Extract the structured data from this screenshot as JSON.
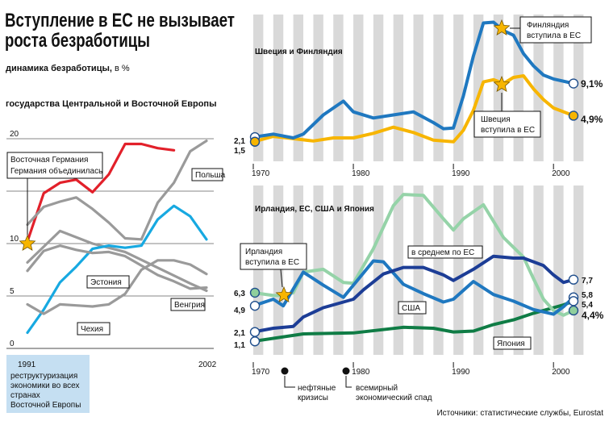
{
  "header": {
    "title_line1": "Вступление в ЕС не вызывает",
    "title_line2": "роста безработицы",
    "subtitle_bold": "динамика безработицы,",
    "subtitle_unit": " в %",
    "section_label": "государства Центральной и Восточной Европы"
  },
  "footer": {
    "restructuring_year": "1991",
    "restructuring_lines": [
      "реструктуризация",
      "экономики во всех",
      "странах",
      "Восточной Европы"
    ],
    "oil_crisis_lines": [
      "нефтяные",
      "кризисы"
    ],
    "recession_lines": [
      "всемирный",
      "экономический спад"
    ],
    "source": "Источники: статистические службы, Eurostat"
  },
  "colors": {
    "red": "#e2202a",
    "gray": "#9a9a9a",
    "cyan": "#17a9e1",
    "blue": "#1f78c0",
    "navy": "#1c3d96",
    "yellow": "#f7b500",
    "green": "#0f7c45",
    "lightgreen": "#95d3a8",
    "band": "#d9d9d9",
    "star": "#f7b500"
  },
  "chart_data": [
    {
      "type": "line",
      "title": "государства Центральной и Восточной Европы",
      "x_range": [
        1991,
        2002
      ],
      "ylim": [
        0,
        20
      ],
      "y_ticks": [
        "0",
        "5",
        "10",
        "20"
      ],
      "x_ticks": [
        "1991",
        "2002"
      ],
      "series": [
        {
          "name": "Восточная Германия",
          "color": "red",
          "x": [
            1991,
            1992,
            1993,
            1994,
            1995,
            1996,
            1997,
            1998,
            1999,
            2000,
            2001
          ],
          "values": [
            10.2,
            14.8,
            15.8,
            16.1,
            14.9,
            16.6,
            19.5,
            19.5,
            19.1,
            18.9,
            null
          ]
        },
        {
          "name": "Польша",
          "color": "gray",
          "x": [
            1991,
            1992,
            1993,
            1994,
            1995,
            1996,
            1997,
            1998,
            1999,
            2000,
            2001,
            2002
          ],
          "values": [
            11.8,
            13.5,
            14.0,
            14.4,
            13.3,
            12.0,
            10.5,
            10.4,
            13.9,
            15.8,
            18.8,
            19.8
          ]
        },
        {
          "name": "",
          "color": "gray",
          "x": [
            1991,
            1993,
            1995,
            1997,
            1999,
            2001,
            2002
          ],
          "values": [
            8.2,
            11.2,
            10.0,
            9.2,
            7.7,
            6.2,
            5.5
          ]
        },
        {
          "name": "Эстония",
          "color": "cyan",
          "x": [
            1991,
            1992,
            1993,
            1994,
            1995,
            1996,
            1997,
            1998,
            1999,
            2000,
            2001,
            2002
          ],
          "values": [
            1.5,
            3.7,
            6.3,
            7.8,
            9.5,
            9.8,
            9.6,
            9.8,
            12.3,
            13.6,
            12.6,
            10.4
          ]
        },
        {
          "name": "Венгрия",
          "color": "gray",
          "x": [
            1991,
            1992,
            1993,
            1994,
            1995,
            1996,
            1997,
            1998,
            1999,
            2000,
            2001,
            2002
          ],
          "values": [
            7.4,
            9.3,
            9.8,
            9.4,
            9.1,
            9.2,
            8.8,
            7.9,
            7.0,
            6.4,
            5.7,
            5.8
          ]
        },
        {
          "name": "Чехия",
          "color": "gray",
          "x": [
            1991,
            1992,
            1993,
            1994,
            1995,
            1996,
            1997,
            1998,
            1999,
            2000,
            2001,
            2002
          ],
          "values": [
            4.2,
            3.3,
            4.2,
            4.1,
            4.0,
            4.2,
            5.2,
            7.5,
            8.4,
            8.4,
            8.0,
            7.1
          ]
        }
      ],
      "annotations": [
        "Восточная Германия",
        "Германия объединилась"
      ]
    },
    {
      "type": "line",
      "title": "Швеция и Финляндия",
      "x_range": [
        1970,
        2002
      ],
      "x_ticks": [
        "1970",
        "1980",
        "1990",
        "2000"
      ],
      "series": [
        {
          "name": "Финляндия",
          "color": "blue",
          "x": [
            1970,
            1972,
            1974,
            1975,
            1977,
            1979,
            1980,
            1982,
            1984,
            1986,
            1988,
            1989,
            1990,
            1991,
            1992,
            1993,
            1994,
            1995,
            1996,
            1997,
            1998,
            1999,
            2000,
            2002
          ],
          "values": [
            2.1,
            2.5,
            2.0,
            2.5,
            5.0,
            6.8,
            5.4,
            4.6,
            5.0,
            5.4,
            4.0,
            3.2,
            3.3,
            7.5,
            12.7,
            17.0,
            17.1,
            16.0,
            15.4,
            13.0,
            11.4,
            10.2,
            9.7,
            9.1
          ]
        },
        {
          "name": "Швеция",
          "color": "yellow",
          "x": [
            1970,
            1972,
            1974,
            1976,
            1978,
            1980,
            1982,
            1984,
            1986,
            1988,
            1990,
            1991,
            1992,
            1993,
            1994,
            1995,
            1996,
            1997,
            1998,
            1999,
            2000,
            2002
          ],
          "values": [
            1.5,
            2.2,
            1.9,
            1.6,
            2.0,
            2.0,
            2.6,
            3.4,
            2.7,
            1.7,
            1.5,
            3.0,
            5.6,
            9.3,
            9.6,
            9.1,
            9.9,
            10.1,
            8.4,
            7.0,
            5.9,
            4.9
          ]
        }
      ],
      "value_labels": [
        "2,1",
        "1,5",
        "9,1%",
        "4,9%"
      ],
      "annotations": [
        "Финляндия вступила в ЕС",
        "Швеция вступила в ЕС"
      ]
    },
    {
      "type": "line",
      "title": "Ирландия, ЕС, США и Япония",
      "x_range": [
        1970,
        2002
      ],
      "x_ticks": [
        "1970",
        "1980",
        "1990",
        "2000"
      ],
      "series": [
        {
          "name": "Ирландия",
          "color": "lightgreen",
          "x": [
            1970,
            1972,
            1973,
            1974,
            1975,
            1977,
            1979,
            1980,
            1982,
            1984,
            1985,
            1987,
            1989,
            1990,
            1991,
            1993,
            1995,
            1997,
            1998,
            1999,
            2000,
            2001,
            2002
          ],
          "values": [
            6.3,
            6.0,
            6.0,
            6.3,
            8.5,
            8.8,
            7.4,
            7.3,
            11.0,
            15.6,
            16.8,
            16.7,
            14.2,
            13.0,
            14.2,
            15.7,
            12.2,
            10.1,
            7.8,
            5.6,
            4.4,
            3.9,
            4.4
          ]
        },
        {
          "name": "в среднем по ЕС",
          "color": "navy",
          "x": [
            1970,
            1972,
            1974,
            1975,
            1977,
            1979,
            1980,
            1981,
            1983,
            1985,
            1987,
            1989,
            1990,
            1992,
            1994,
            1996,
            1997,
            1999,
            2000,
            2001,
            2002
          ],
          "values": [
            2.1,
            2.5,
            2.7,
            3.7,
            4.7,
            5.3,
            5.6,
            6.6,
            8.3,
            9.0,
            9.0,
            8.2,
            7.6,
            8.8,
            10.2,
            10.0,
            10.0,
            9.2,
            8.2,
            7.4,
            7.7
          ]
        },
        {
          "name": "США",
          "color": "blue",
          "x": [
            1970,
            1972,
            1973,
            1975,
            1977,
            1979,
            1980,
            1982,
            1983,
            1985,
            1987,
            1989,
            1990,
            1992,
            1994,
            1996,
            1998,
            2000,
            2001,
            2002
          ],
          "values": [
            4.9,
            5.6,
            4.9,
            8.5,
            7.1,
            5.8,
            7.1,
            9.7,
            9.6,
            7.2,
            6.2,
            5.3,
            5.6,
            7.5,
            6.1,
            5.4,
            4.5,
            4.0,
            4.8,
            5.8
          ]
        },
        {
          "name": "Япония",
          "color": "green",
          "x": [
            1970,
            1975,
            1980,
            1985,
            1988,
            1990,
            1992,
            1994,
            1996,
            1998,
            2000,
            2001,
            2002
          ],
          "values": [
            1.1,
            1.9,
            2.0,
            2.6,
            2.5,
            2.1,
            2.2,
            2.9,
            3.4,
            4.1,
            4.7,
            5.0,
            5.4
          ]
        }
      ],
      "value_labels": [
        "6,3",
        "4,9",
        "2,1",
        "1,1",
        "7,7",
        "5,8",
        "5,4",
        "4,4%"
      ],
      "annotations": [
        "Ирландия вступила в ЕС"
      ]
    }
  ]
}
